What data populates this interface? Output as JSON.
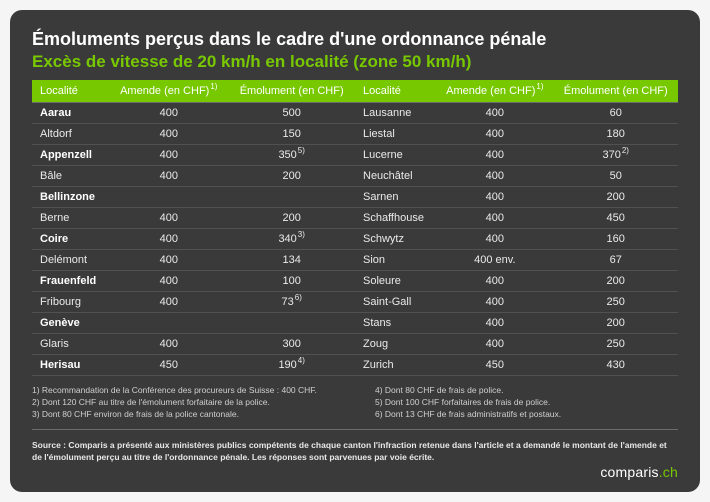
{
  "title": "Émoluments perçus dans le cadre d'une ordonnance pénale",
  "subtitle": "Excès de vitesse de 20 km/h en localité (zone 50 km/h)",
  "columns": {
    "locality": "Localité",
    "fine": "Amende (en CHF)",
    "fine_sup": "1)",
    "fee": "Émolument (en CHF)"
  },
  "left_rows": [
    {
      "loc": "Aarau",
      "fine": "400",
      "fee": "500",
      "fee_sup": "",
      "hl": true
    },
    {
      "loc": "Altdorf",
      "fine": "400",
      "fee": "150",
      "fee_sup": "",
      "hl": false
    },
    {
      "loc": "Appenzell",
      "fine": "400",
      "fee": "350",
      "fee_sup": "5)",
      "hl": true
    },
    {
      "loc": "Bâle",
      "fine": "400",
      "fee": "200",
      "fee_sup": "",
      "hl": false
    },
    {
      "loc": "Bellinzone",
      "fine": "",
      "fee": "",
      "fee_sup": "",
      "hl": true
    },
    {
      "loc": "Berne",
      "fine": "400",
      "fee": "200",
      "fee_sup": "",
      "hl": false
    },
    {
      "loc": "Coire",
      "fine": "400",
      "fee": "340",
      "fee_sup": "3)",
      "hl": true
    },
    {
      "loc": "Delémont",
      "fine": "400",
      "fee": "134",
      "fee_sup": "",
      "hl": false
    },
    {
      "loc": "Frauenfeld",
      "fine": "400",
      "fee": "100",
      "fee_sup": "",
      "hl": true
    },
    {
      "loc": "Fribourg",
      "fine": "400",
      "fee": "73",
      "fee_sup": "6)",
      "hl": false
    },
    {
      "loc": "Genève",
      "fine": "",
      "fee": "",
      "fee_sup": "",
      "hl": true
    },
    {
      "loc": "Glaris",
      "fine": "400",
      "fee": "300",
      "fee_sup": "",
      "hl": false
    },
    {
      "loc": "Herisau",
      "fine": "450",
      "fee": "190",
      "fee_sup": "4)",
      "hl": true
    }
  ],
  "right_rows": [
    {
      "loc": "Lausanne",
      "fine": "400",
      "fee": "60",
      "fee_sup": "",
      "hl": false
    },
    {
      "loc": "Liestal",
      "fine": "400",
      "fee": "180",
      "fee_sup": "",
      "hl": false
    },
    {
      "loc": "Lucerne",
      "fine": "400",
      "fee": "370",
      "fee_sup": "2)",
      "hl": false
    },
    {
      "loc": "Neuchâtel",
      "fine": "400",
      "fee": "50",
      "fee_sup": "",
      "hl": false
    },
    {
      "loc": "Sarnen",
      "fine": "400",
      "fee": "200",
      "fee_sup": "",
      "hl": false
    },
    {
      "loc": "Schaffhouse",
      "fine": "400",
      "fee": "450",
      "fee_sup": "",
      "hl": false
    },
    {
      "loc": "Schwytz",
      "fine": "400",
      "fee": "160",
      "fee_sup": "",
      "hl": false
    },
    {
      "loc": "Sion",
      "fine": "400 env.",
      "fee": "67",
      "fee_sup": "",
      "hl": false
    },
    {
      "loc": "Soleure",
      "fine": "400",
      "fee": "200",
      "fee_sup": "",
      "hl": false
    },
    {
      "loc": "Saint-Gall",
      "fine": "400",
      "fee": "250",
      "fee_sup": "",
      "hl": false
    },
    {
      "loc": "Stans",
      "fine": "400",
      "fee": "200",
      "fee_sup": "",
      "hl": false
    },
    {
      "loc": "Zoug",
      "fine": "400",
      "fee": "250",
      "fee_sup": "",
      "hl": false
    },
    {
      "loc": "Zurich",
      "fine": "450",
      "fee": "430",
      "fee_sup": "",
      "hl": false
    }
  ],
  "footnotes_left": [
    "1) Recommandation de la Conférence des procureurs de Suisse : 400 CHF.",
    "2) Dont 120 CHF au titre de l'émolument forfaitaire de la police.",
    "3) Dont 80 CHF environ de frais de la police cantonale."
  ],
  "footnotes_right": [
    "4) Dont 80 CHF de frais de police.",
    "5) Dont 100 CHF forfaitaires de frais de police.",
    "6) Dont 13 CHF de frais administratifs et postaux."
  ],
  "source": "Source : Comparis a présenté aux ministères publics compétents de chaque canton l'infraction retenue dans l'article et a demandé le montant de l'amende et de l'émolument perçu au titre de l'ordonnance pénale. Les réponses sont parvenues par voie écrite.",
  "logo": {
    "text": "comparis",
    "suffix": ".ch"
  },
  "colors": {
    "accent": "#78c800",
    "bg": "#3a3a3a",
    "text": "#ffffff"
  }
}
